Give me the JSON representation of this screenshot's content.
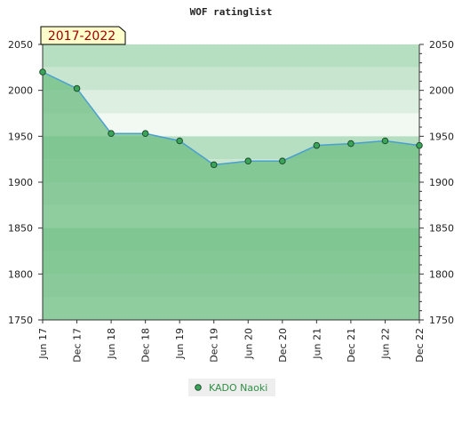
{
  "chart_data": {
    "type": "line",
    "title": "WOF ratinglist",
    "period_label": "2017-2022",
    "categories": [
      "Jun 17",
      "Dec 17",
      "Jun 18",
      "Dec 18",
      "Jun 19",
      "Dec 19",
      "Jun 20",
      "Dec 20",
      "Jun 21",
      "Dec 21",
      "Jun 22",
      "Dec 22"
    ],
    "series": [
      {
        "name": "KADO Naoki",
        "values": [
          2020,
          2002,
          1953,
          1953,
          1945,
          1919,
          1923,
          1923,
          1940,
          1942,
          1945,
          1940
        ],
        "line_color": "#4a9fd0",
        "marker_color": "#3aa55a"
      }
    ],
    "ylim": [
      1750,
      2050
    ],
    "yticks": [
      1750,
      1800,
      1850,
      1900,
      1950,
      2000,
      2050
    ],
    "y_minor_step": 10,
    "grid": true,
    "legend_position": "bottom",
    "colors": {
      "area_fill": "#6dbd83",
      "band_light": "#f2f9f3",
      "band_mid": "#ddefe0",
      "band_dark": "#c8e6cf",
      "band_darker": "#b5dfc0",
      "box_fill": "#ffffcc",
      "box_text": "#a00000"
    }
  }
}
